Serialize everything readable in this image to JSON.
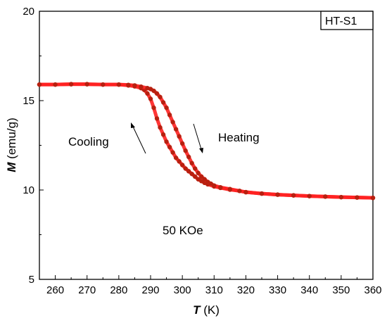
{
  "chart_data": {
    "type": "scatter",
    "xlabel_symbol": "T",
    "xlabel_unit": " (K)",
    "ylabel_symbol": "M",
    "ylabel_unit": " (emu/g)",
    "xlim": [
      255,
      360
    ],
    "ylim": [
      5,
      20
    ],
    "x_ticks": [
      "260",
      "270",
      "280",
      "290",
      "300",
      "310",
      "320",
      "330",
      "340",
      "350",
      "360"
    ],
    "y_ticks": [
      "5",
      "10",
      "15",
      "20"
    ],
    "sample_label": "HT-S1",
    "annotations": {
      "cooling": "Cooling",
      "heating": "Heating",
      "field": "50 KOe"
    },
    "colors": {
      "line": "#ff2020",
      "marker": "#b82010"
    },
    "series": [
      {
        "x": [
          255,
          260,
          265,
          270,
          275,
          280,
          283,
          285,
          287,
          288,
          289,
          290,
          291,
          292,
          293,
          294,
          295,
          296,
          297,
          298,
          299,
          300,
          301,
          302,
          303,
          304,
          305,
          306,
          307,
          308,
          310,
          312,
          315,
          318,
          320,
          325,
          330,
          335,
          340,
          345,
          350,
          355,
          360
        ],
        "y": [
          15.9,
          15.9,
          15.92,
          15.92,
          15.9,
          15.9,
          15.85,
          15.8,
          15.7,
          15.6,
          15.4,
          15.1,
          14.6,
          14.0,
          13.5,
          13.1,
          12.7,
          12.4,
          12.1,
          11.8,
          11.6,
          11.4,
          11.2,
          11.05,
          10.9,
          10.75,
          10.6,
          10.5,
          10.4,
          10.32,
          10.2,
          10.12,
          10.02,
          9.95,
          9.88,
          9.8,
          9.74,
          9.7,
          9.66,
          9.63,
          9.6,
          9.58,
          9.56
        ]
      },
      {
        "x": [
          255,
          260,
          265,
          270,
          275,
          280,
          283,
          285,
          287,
          289,
          290,
          291,
          292,
          293,
          294,
          295,
          296,
          297,
          298,
          299,
          300,
          301,
          302,
          303,
          304,
          305,
          306,
          307,
          308,
          309,
          310,
          312,
          315,
          318,
          320,
          325,
          330,
          335,
          340,
          345,
          350,
          355,
          360
        ],
        "y": [
          15.9,
          15.9,
          15.92,
          15.92,
          15.9,
          15.9,
          15.88,
          15.85,
          15.78,
          15.7,
          15.65,
          15.55,
          15.4,
          15.2,
          14.9,
          14.6,
          14.2,
          13.8,
          13.4,
          13.0,
          12.6,
          12.2,
          11.85,
          11.5,
          11.2,
          10.95,
          10.75,
          10.6,
          10.45,
          10.35,
          10.25,
          10.15,
          10.05,
          9.95,
          9.88,
          9.8,
          9.74,
          9.7,
          9.66,
          9.63,
          9.6,
          9.58,
          9.56
        ]
      }
    ]
  }
}
